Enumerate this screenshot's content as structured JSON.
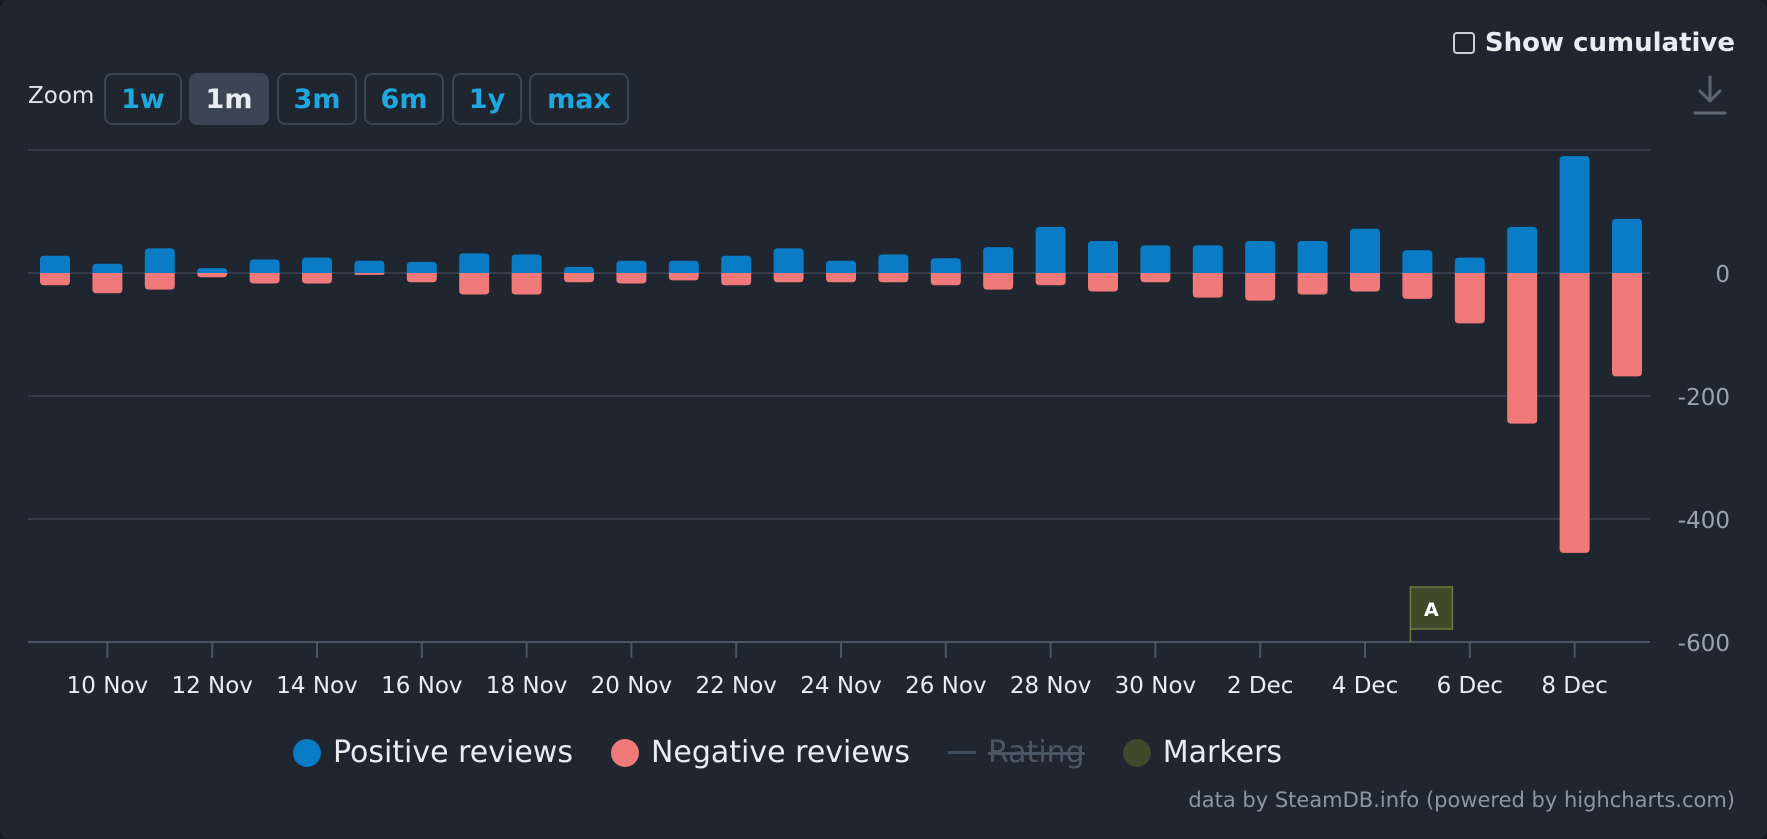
{
  "header": {
    "zoom_label": "Zoom",
    "zoom_buttons": [
      "1w",
      "1m",
      "3m",
      "6m",
      "1y",
      "max"
    ],
    "active_zoom": "1m",
    "show_cumulative_label": "Show cumulative"
  },
  "colors": {
    "positive": "#0a7cc6",
    "negative": "#f07a79",
    "rating": "#3d4b5c",
    "markers": "#3e4a2a",
    "grid": "#3a4350",
    "text": "#e8edf2",
    "axis_text": "#9aa4b0"
  },
  "icons": {
    "download": "download-icon",
    "checkbox": "checkbox-icon"
  },
  "chart_data": {
    "type": "bar",
    "x_start": "9 Nov",
    "x_end": "9 Dec",
    "x_ticks": [
      "10 Nov",
      "12 Nov",
      "14 Nov",
      "16 Nov",
      "18 Nov",
      "20 Nov",
      "22 Nov",
      "24 Nov",
      "26 Nov",
      "28 Nov",
      "30 Nov",
      "2 Dec",
      "4 Dec",
      "6 Dec",
      "8 Dec"
    ],
    "y_ticks": [
      0,
      -200,
      -400,
      -600
    ],
    "ylim": [
      -600,
      200
    ],
    "categories": [
      "9 Nov",
      "10 Nov",
      "11 Nov",
      "12 Nov",
      "13 Nov",
      "14 Nov",
      "15 Nov",
      "16 Nov",
      "17 Nov",
      "18 Nov",
      "19 Nov",
      "20 Nov",
      "21 Nov",
      "22 Nov",
      "23 Nov",
      "24 Nov",
      "25 Nov",
      "26 Nov",
      "27 Nov",
      "28 Nov",
      "29 Nov",
      "30 Nov",
      "1 Dec",
      "2 Dec",
      "3 Dec",
      "4 Dec",
      "5 Dec",
      "6 Dec",
      "7 Dec",
      "8 Dec",
      "9 Dec"
    ],
    "series": [
      {
        "name": "Positive reviews",
        "values": [
          28,
          15,
          40,
          8,
          22,
          25,
          20,
          18,
          32,
          30,
          10,
          20,
          20,
          28,
          40,
          20,
          30,
          24,
          42,
          75,
          52,
          45,
          45,
          52,
          52,
          72,
          37,
          25,
          75,
          190,
          88
        ]
      },
      {
        "name": "Negative reviews",
        "values": [
          -20,
          -33,
          -27,
          -7,
          -17,
          -17,
          -3,
          -15,
          -35,
          -35,
          -15,
          -17,
          -12,
          -20,
          -15,
          -15,
          -15,
          -20,
          -27,
          -20,
          -30,
          -15,
          -40,
          -45,
          -35,
          -30,
          -42,
          -82,
          -245,
          -455,
          -168
        ]
      }
    ],
    "legend": [
      {
        "label": "Positive reviews",
        "visible": true
      },
      {
        "label": "Negative reviews",
        "visible": true
      },
      {
        "label": "Rating",
        "visible": false
      },
      {
        "label": "Markers",
        "visible": true
      }
    ],
    "markers": [
      {
        "label": "A",
        "date": "5 Dec"
      }
    ],
    "grid": true,
    "legend_position": "bottom"
  },
  "credits": "data by SteamDB.info (powered by highcharts.com)"
}
